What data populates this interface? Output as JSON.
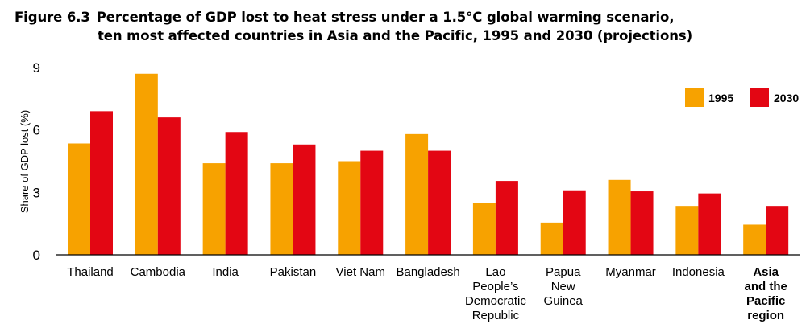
{
  "figure": {
    "label": "Figure 6.3",
    "title_line1": "Percentage of GDP lost to heat stress under a 1.5°C global warming scenario,",
    "title_line2": "ten most affected countries in Asia and the Pacific, 1995 and 2030 (projections)"
  },
  "chart_data": {
    "type": "bar",
    "ylabel": "Share of GDP lost (%)",
    "xlabel": "",
    "ylim": [
      0,
      9
    ],
    "yticks": [
      0,
      3,
      6,
      9
    ],
    "grid": false,
    "legend_position": "top-right",
    "categories": [
      [
        "Thailand"
      ],
      [
        "Cambodia"
      ],
      [
        "India"
      ],
      [
        "Pakistan"
      ],
      [
        "Viet Nam"
      ],
      [
        "Bangladesh"
      ],
      [
        "Lao",
        "People’s",
        "Democratic",
        "Republic"
      ],
      [
        "Papua",
        "New",
        "Guinea"
      ],
      [
        "Myanmar"
      ],
      [
        "Indonesia"
      ],
      [
        "Asia",
        "and the",
        "Pacific",
        "region"
      ]
    ],
    "bold_categories": [
      10
    ],
    "series": [
      {
        "name": "1995",
        "color": "#f7a200",
        "values": [
          5.35,
          8.7,
          4.4,
          4.4,
          4.5,
          5.8,
          2.5,
          1.55,
          3.6,
          2.35,
          1.45
        ]
      },
      {
        "name": "2030",
        "color": "#e30613",
        "values": [
          6.9,
          6.6,
          5.9,
          5.3,
          5.0,
          5.0,
          3.55,
          3.1,
          3.05,
          2.95,
          2.35
        ]
      }
    ]
  }
}
